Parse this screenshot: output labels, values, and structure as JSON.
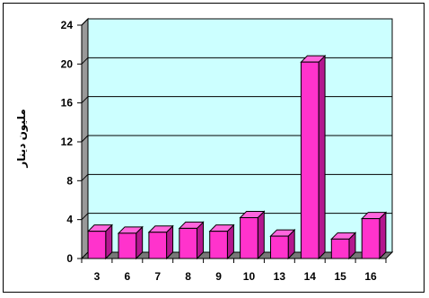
{
  "chart_data": {
    "type": "bar",
    "title": "",
    "xlabel": "",
    "ylabel": "مليون دينار",
    "categories": [
      "3",
      "6",
      "7",
      "8",
      "9",
      "10",
      "13",
      "14",
      "15",
      "16"
    ],
    "values": [
      2.8,
      2.6,
      2.7,
      3.1,
      2.8,
      4.2,
      2.3,
      20.2,
      2.0,
      4.1
    ],
    "ylim": [
      0,
      24
    ],
    "yticks": [
      0,
      4,
      8,
      12,
      16,
      20,
      24
    ],
    "grid": true,
    "legend": "none",
    "colors": {
      "bar_front": "#ff33cc",
      "bar_top": "#ff66dd",
      "bar_side": "#b3178f",
      "bar_stroke": "#000000",
      "plot_back": "#ccffff",
      "plot_wall": "#999999",
      "plot_floor": "#777777",
      "grid": "#000000"
    }
  }
}
